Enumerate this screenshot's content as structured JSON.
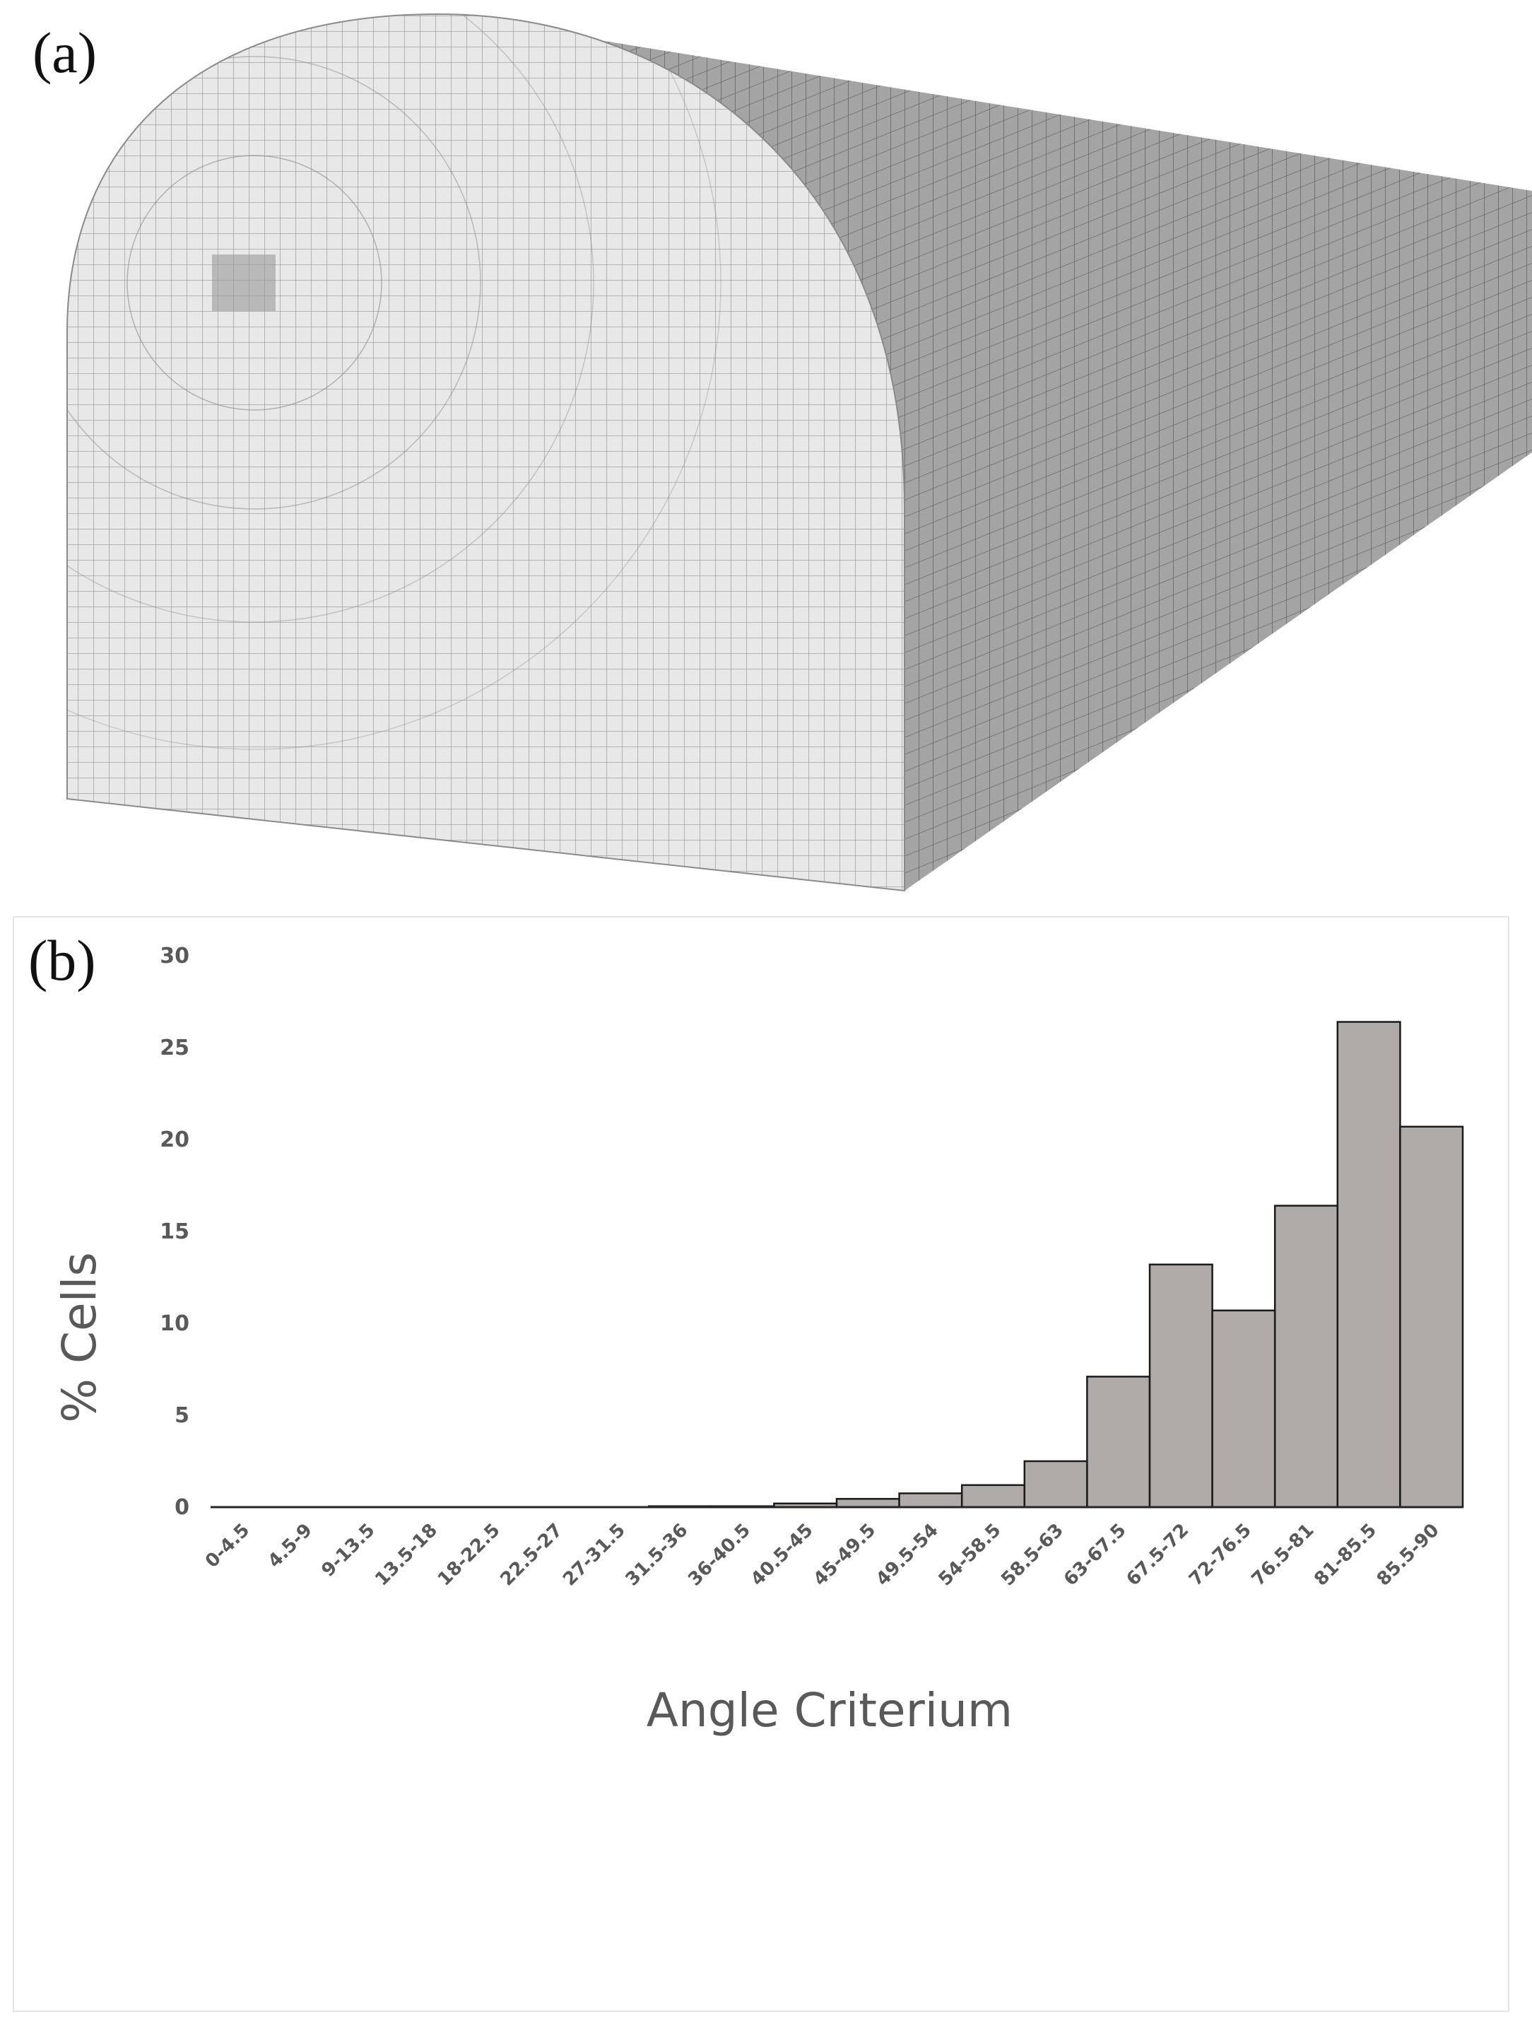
{
  "panels": {
    "a": {
      "label": "(a)"
    },
    "b": {
      "label": "(b)"
    }
  },
  "colors": {
    "bar_fill": "#b0aba8",
    "bar_stroke": "#1a1a1a",
    "mesh_face": "#e8e8e8",
    "mesh_side": "#a4a4a4",
    "mesh_line": "#555555",
    "axis_text": "#595959"
  },
  "chart_data": {
    "type": "bar",
    "title": "",
    "xlabel": "Angle Criterium",
    "ylabel": "% Cells",
    "ylim": [
      0,
      30
    ],
    "yticks": [
      0,
      5,
      10,
      15,
      20,
      25,
      30
    ],
    "grid": false,
    "legend": "none",
    "categories": [
      "0-4.5",
      "4.5-9",
      "9-13.5",
      "13.5-18",
      "18-22.5",
      "22.5-27",
      "27-31.5",
      "31.5-36",
      "36-40.5",
      "40.5-45",
      "45-49.5",
      "49.5-54",
      "54-58.5",
      "58.5-63",
      "63-67.5",
      "67.5-72",
      "72-76.5",
      "76.5-81",
      "81-85.5",
      "85.5-90"
    ],
    "values": [
      0,
      0,
      0,
      0,
      0,
      0,
      0,
      0.05,
      0.05,
      0.2,
      0.45,
      0.75,
      1.2,
      2.5,
      7.1,
      13.2,
      10.7,
      16.4,
      26.4,
      20.7
    ]
  }
}
